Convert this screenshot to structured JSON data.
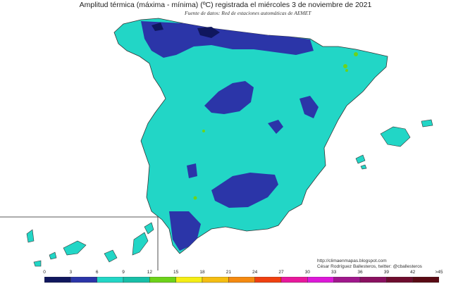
{
  "title": "Amplitud térmica (máxima - mínima) (ºC) registrada el miércoles 3 de noviembre de 2021",
  "subtitle": "Fuente de datos: Red de estaciones automáticas de AEMET",
  "credits": {
    "url": "http://climaenmapas.blogspot.com",
    "author": "César Rodríguez Ballesteros, twitter: @cballesteros"
  },
  "legend": {
    "unit": "ºC",
    "ticks": [
      "0",
      "3",
      "6",
      "9",
      "12",
      "15",
      "18",
      "21",
      "24",
      "27",
      "30",
      "33",
      "36",
      "39",
      "42",
      ">45"
    ],
    "colors": [
      "#10175e",
      "#2b35a8",
      "#22d6c6",
      "#17bfa8",
      "#6dd31a",
      "#f5ee15",
      "#f5be12",
      "#f58a10",
      "#f04010",
      "#e8189c",
      "#dd18d8",
      "#a0178c",
      "#8a1060",
      "#6e0c2e",
      "#5a0a14"
    ]
  },
  "map_colors": {
    "sea": "#ffffff",
    "base_class": "#22d6c6",
    "low_class": "#2b35a8",
    "lowest_class": "#10175e",
    "mid_class": "#17bfa8",
    "high_class": "#6dd31a",
    "borders": "#333333"
  }
}
